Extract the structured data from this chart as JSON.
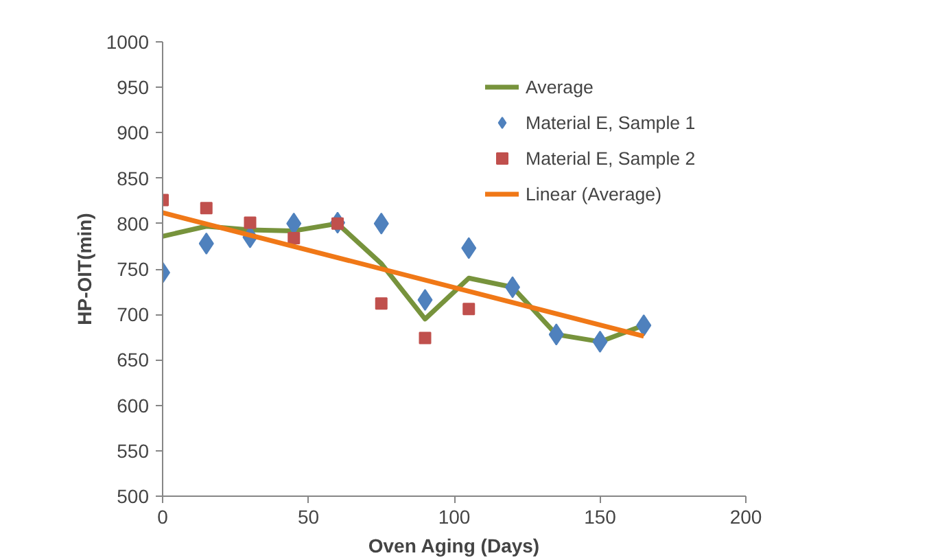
{
  "chart_data": {
    "type": "scatter",
    "xlabel": "Oven Aging (Days)",
    "ylabel": "HP-OIT(min)",
    "x": [
      0,
      15,
      30,
      45,
      60,
      75,
      90,
      105,
      120,
      135,
      150,
      165
    ],
    "series": [
      {
        "name": "Average",
        "type": "line",
        "color": "#77933c",
        "values": [
          786,
          797,
          793,
          792,
          800,
          756,
          695,
          740,
          730,
          678,
          670,
          688
        ]
      },
      {
        "name": "Material E, Sample 1",
        "marker": "diamond",
        "color": "#4f81bd",
        "values": [
          746,
          778,
          785,
          800,
          801,
          800,
          716,
          773,
          730,
          678,
          670,
          688
        ]
      },
      {
        "name": "Material E, Sample 2",
        "marker": "square",
        "color": "#c0504d",
        "values": [
          826,
          817,
          801,
          784,
          800,
          712,
          674,
          706,
          null,
          null,
          null,
          null
        ]
      },
      {
        "name": "Linear (Average)",
        "type": "line",
        "color": "#f07817",
        "x": [
          0,
          165
        ],
        "values": [
          812,
          676
        ]
      }
    ],
    "xlim": [
      0,
      200
    ],
    "xticks": [
      0,
      50,
      100,
      150,
      200
    ],
    "ylim": [
      500,
      1000
    ],
    "yticks": [
      500,
      550,
      600,
      650,
      700,
      750,
      800,
      850,
      900,
      950,
      1000
    ],
    "grid": false,
    "legend": "top right"
  }
}
